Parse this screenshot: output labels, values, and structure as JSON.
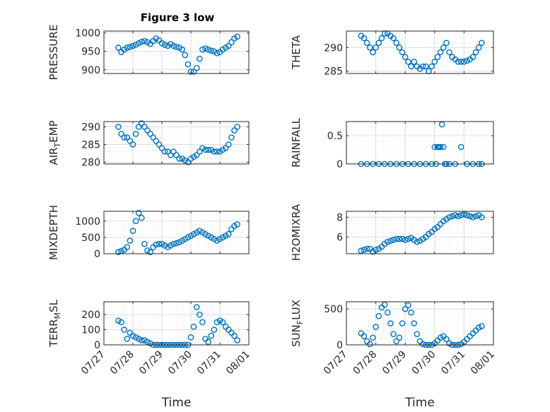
{
  "figure": {
    "title": "Figure 3 low",
    "colors": {
      "marker": "#0072BD",
      "axes": "#262626",
      "grid": "#dcdcdc",
      "background": "#ffffff"
    }
  },
  "chart_data": [
    {
      "type": "scatter",
      "ylabel": "PRESSURE",
      "xlabel": "",
      "xlim": [
        "07/27",
        "08/01"
      ],
      "ylim": [
        890,
        1005
      ],
      "yticks": [
        900,
        950,
        1000
      ],
      "x_days": [
        0.5,
        0.6,
        0.7,
        0.8,
        0.9,
        1.0,
        1.1,
        1.2,
        1.3,
        1.4,
        1.5,
        1.6,
        1.7,
        1.8,
        1.9,
        2.0,
        2.1,
        2.2,
        2.3,
        2.4,
        2.5,
        2.6,
        2.7,
        2.8,
        2.9,
        3.0,
        3.1,
        3.2,
        3.3,
        3.4,
        3.5,
        3.6,
        3.7,
        3.8,
        3.9,
        4.0,
        4.1,
        4.2,
        4.3,
        4.4,
        4.5,
        4.6
      ],
      "y": [
        960,
        948,
        955,
        960,
        962,
        965,
        968,
        972,
        976,
        978,
        975,
        970,
        978,
        985,
        980,
        972,
        968,
        965,
        970,
        965,
        962,
        960,
        955,
        940,
        915,
        895,
        895,
        905,
        930,
        955,
        958,
        955,
        952,
        950,
        945,
        948,
        955,
        960,
        965,
        975,
        985,
        990
      ]
    },
    {
      "type": "scatter",
      "ylabel": "THETA",
      "xlabel": "",
      "xlim": [
        "07/27",
        "08/01"
      ],
      "ylim": [
        284.5,
        293.5
      ],
      "yticks": [
        285,
        290
      ],
      "x_days": [
        0.5,
        0.6,
        0.7,
        0.8,
        0.9,
        1.0,
        1.1,
        1.2,
        1.3,
        1.4,
        1.5,
        1.6,
        1.7,
        1.8,
        1.9,
        2.0,
        2.1,
        2.2,
        2.3,
        2.4,
        2.5,
        2.6,
        2.7,
        2.8,
        2.9,
        3.0,
        3.1,
        3.2,
        3.3,
        3.4,
        3.5,
        3.6,
        3.7,
        3.8,
        3.9,
        4.0,
        4.1,
        4.2,
        4.3,
        4.4,
        4.5,
        4.6
      ],
      "y": [
        292.5,
        292,
        291,
        290,
        289,
        290,
        291,
        292,
        293,
        293,
        292.5,
        292,
        291,
        290,
        289,
        288,
        287,
        286,
        287,
        286,
        285.5,
        286,
        286,
        285,
        286,
        287,
        288,
        289,
        290,
        291,
        289,
        288,
        287.5,
        287,
        287,
        287,
        287.2,
        287.5,
        288,
        289,
        290,
        291
      ]
    },
    {
      "type": "scatter",
      "ylabel": "AIR_TEMP",
      "xlabel": "",
      "xlim": [
        "07/27",
        "08/01"
      ],
      "ylim": [
        279.5,
        291.5
      ],
      "yticks": [
        280,
        285,
        290
      ],
      "x_days": [
        0.5,
        0.6,
        0.7,
        0.8,
        0.9,
        1.0,
        1.1,
        1.2,
        1.3,
        1.4,
        1.5,
        1.6,
        1.7,
        1.8,
        1.9,
        2.0,
        2.1,
        2.2,
        2.3,
        2.4,
        2.5,
        2.6,
        2.7,
        2.8,
        2.9,
        3.0,
        3.1,
        3.2,
        3.3,
        3.4,
        3.5,
        3.6,
        3.7,
        3.8,
        3.9,
        4.0,
        4.1,
        4.2,
        4.3,
        4.4,
        4.5,
        4.6
      ],
      "y": [
        290,
        288,
        287,
        287,
        286,
        285,
        288,
        290,
        291,
        290,
        289,
        288,
        287,
        286,
        285,
        284,
        283,
        283,
        282,
        283,
        282,
        281,
        281,
        280.5,
        280,
        281,
        281.5,
        282,
        283,
        284,
        283.5,
        283.5,
        283.5,
        283,
        283,
        283,
        283.5,
        284,
        285,
        287,
        289,
        290
      ]
    },
    {
      "type": "scatter",
      "ylabel": "RAINFALL",
      "xlabel": "",
      "xlim": [
        "07/27",
        "08/01"
      ],
      "ylim": [
        0,
        0.75
      ],
      "yticks": [
        0,
        0.5
      ],
      "x_days": [
        0.5,
        0.7,
        0.9,
        1.1,
        1.3,
        1.5,
        1.7,
        1.9,
        2.1,
        2.3,
        2.5,
        2.7,
        2.9,
        3.0,
        3.05,
        3.1,
        3.12,
        3.15,
        3.2,
        3.25,
        3.3,
        3.35,
        3.4,
        3.5,
        3.7,
        3.9,
        4.1,
        4.3,
        4.5,
        4.6
      ],
      "y": [
        0,
        0,
        0,
        0,
        0,
        0,
        0,
        0,
        0,
        0,
        0,
        0,
        0,
        0.3,
        0,
        0.3,
        0.3,
        0.3,
        0.3,
        0.7,
        0.3,
        0,
        0,
        0,
        0,
        0.3,
        0,
        0,
        0,
        0
      ]
    },
    {
      "type": "scatter",
      "ylabel": "MIXDEPTH",
      "xlabel": "",
      "xlim": [
        "07/27",
        "08/01"
      ],
      "ylim": [
        0,
        1300
      ],
      "yticks": [
        0,
        500,
        1000
      ],
      "x_days": [
        0.5,
        0.6,
        0.7,
        0.8,
        0.9,
        1.0,
        1.1,
        1.2,
        1.3,
        1.4,
        1.5,
        1.6,
        1.7,
        1.8,
        1.9,
        2.0,
        2.1,
        2.2,
        2.3,
        2.4,
        2.5,
        2.6,
        2.7,
        2.8,
        2.9,
        3.0,
        3.1,
        3.2,
        3.3,
        3.4,
        3.5,
        3.6,
        3.7,
        3.8,
        3.9,
        4.0,
        4.1,
        4.2,
        4.3,
        4.4,
        4.5,
        4.6
      ],
      "y": [
        50,
        80,
        120,
        200,
        400,
        700,
        1000,
        1250,
        1100,
        300,
        100,
        50,
        200,
        280,
        300,
        300,
        250,
        200,
        250,
        300,
        320,
        350,
        400,
        450,
        500,
        550,
        600,
        650,
        700,
        650,
        600,
        550,
        500,
        450,
        400,
        450,
        500,
        550,
        600,
        750,
        850,
        900
      ]
    },
    {
      "type": "scatter",
      "ylabel": "H2OMIXRA",
      "xlabel": "",
      "xlim": [
        "07/27",
        "08/01"
      ],
      "ylim": [
        4.3,
        8.6
      ],
      "yticks": [
        6,
        8
      ],
      "x_days": [
        0.5,
        0.6,
        0.7,
        0.8,
        0.9,
        1.0,
        1.1,
        1.2,
        1.3,
        1.4,
        1.5,
        1.6,
        1.7,
        1.8,
        1.9,
        2.0,
        2.1,
        2.2,
        2.3,
        2.4,
        2.5,
        2.6,
        2.7,
        2.8,
        2.9,
        3.0,
        3.1,
        3.2,
        3.3,
        3.4,
        3.5,
        3.6,
        3.7,
        3.8,
        3.9,
        4.0,
        4.1,
        4.2,
        4.3,
        4.4,
        4.5,
        4.6
      ],
      "y": [
        4.6,
        4.7,
        4.8,
        4.8,
        4.5,
        4.7,
        4.8,
        5.0,
        5.3,
        5.5,
        5.6,
        5.7,
        5.8,
        5.8,
        5.8,
        5.7,
        5.8,
        5.9,
        5.7,
        5.5,
        5.6,
        5.8,
        6.0,
        6.3,
        6.5,
        6.8,
        7.0,
        7.3,
        7.6,
        7.8,
        8.0,
        8.1,
        8.2,
        8.1,
        8.2,
        8.3,
        8.2,
        8.1,
        8.0,
        8.1,
        8.2,
        8.0
      ]
    },
    {
      "type": "scatter",
      "ylabel": "TERR_MSL",
      "xlabel": "Time",
      "xlim": [
        "07/27",
        "08/01"
      ],
      "ylim": [
        0,
        285
      ],
      "yticks": [
        0,
        100,
        200
      ],
      "xticklabels": [
        "07/27",
        "07/28",
        "07/29",
        "07/30",
        "07/31",
        "08/01"
      ],
      "x_days": [
        0.5,
        0.6,
        0.7,
        0.8,
        0.9,
        1.0,
        1.1,
        1.2,
        1.3,
        1.4,
        1.5,
        1.6,
        1.7,
        1.8,
        1.9,
        2.0,
        2.1,
        2.2,
        2.3,
        2.4,
        2.5,
        2.6,
        2.7,
        2.8,
        2.9,
        3.0,
        3.1,
        3.2,
        3.3,
        3.4,
        3.5,
        3.6,
        3.7,
        3.8,
        3.9,
        4.0,
        4.1,
        4.2,
        4.3,
        4.4,
        4.5,
        4.6
      ],
      "y": [
        160,
        150,
        100,
        40,
        80,
        60,
        50,
        40,
        30,
        30,
        20,
        10,
        0,
        0,
        0,
        0,
        0,
        0,
        0,
        0,
        0,
        0,
        0,
        0,
        0,
        50,
        120,
        250,
        200,
        150,
        40,
        20,
        60,
        100,
        150,
        160,
        150,
        120,
        100,
        80,
        60,
        30
      ]
    },
    {
      "type": "scatter",
      "ylabel": "SUN_FLUX",
      "xlabel": "Time",
      "xlim": [
        "07/27",
        "08/01"
      ],
      "ylim": [
        0,
        600
      ],
      "yticks": [
        0,
        500
      ],
      "xticklabels": [
        "07/27",
        "07/28",
        "07/29",
        "07/30",
        "07/31",
        "08/01"
      ],
      "x_days": [
        0.5,
        0.6,
        0.7,
        0.8,
        0.9,
        1.0,
        1.1,
        1.2,
        1.3,
        1.4,
        1.5,
        1.6,
        1.7,
        1.8,
        1.9,
        2.0,
        2.1,
        2.2,
        2.3,
        2.4,
        2.5,
        2.6,
        2.7,
        2.8,
        2.9,
        3.0,
        3.1,
        3.2,
        3.3,
        3.4,
        3.5,
        3.6,
        3.7,
        3.8,
        3.9,
        4.0,
        4.1,
        4.2,
        4.3,
        4.4,
        4.5,
        4.6
      ],
      "y": [
        160,
        120,
        50,
        10,
        100,
        250,
        400,
        520,
        560,
        450,
        300,
        150,
        50,
        100,
        300,
        500,
        550,
        450,
        300,
        150,
        50,
        10,
        0,
        0,
        0,
        20,
        60,
        100,
        120,
        80,
        20,
        0,
        0,
        0,
        10,
        40,
        80,
        120,
        160,
        200,
        240,
        260
      ]
    }
  ]
}
